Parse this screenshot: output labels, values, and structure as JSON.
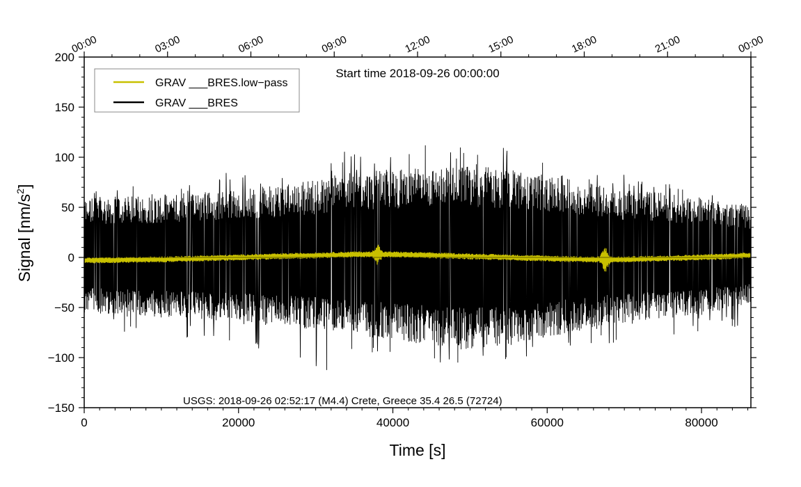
{
  "chart_data": {
    "type": "line",
    "title": "",
    "subtitle": "Start time 2018-09-26 00:00:00",
    "xlabel": "Time [s]",
    "ylabel": "Signal [nm/s",
    "ylabel_sup": "2",
    "ylabel_close": "]",
    "xlim": [
      0,
      86400
    ],
    "ylim": [
      -150,
      200
    ],
    "x_ticks": [
      0,
      20000,
      40000,
      60000,
      80000
    ],
    "x_tick_labels": [
      "0",
      "20000",
      "40000",
      "60000",
      "80000"
    ],
    "y_ticks": [
      200,
      150,
      100,
      50,
      0,
      -50,
      -100,
      -150
    ],
    "y_tick_labels": [
      "200",
      "150",
      "100",
      "50",
      "0",
      "−50",
      "−100",
      "−150"
    ],
    "top_axis_ticks": [
      0,
      10800,
      21600,
      32400,
      43200,
      54000,
      64800,
      75600,
      86400
    ],
    "top_axis_labels": [
      "00:00",
      "03:00",
      "06:00",
      "09:00",
      "12:00",
      "15:00",
      "18:00",
      "21:00",
      "00:00"
    ],
    "annotation": "USGS: 2018-09-26 02:52:17 (M4.4) Crete, Greece 35.4 26.5 (72724)",
    "grid": false,
    "legend_position": "top-left",
    "series": [
      {
        "name": "GRAV ___BRES.low−pass",
        "color": "#c8c000",
        "envelope_x": [
          0,
          10000,
          20000,
          30000,
          35000,
          40000,
          45000,
          50000,
          55000,
          60000,
          65000,
          70000,
          80000,
          86400
        ],
        "center": [
          -3,
          -2,
          0,
          2,
          3,
          3,
          2,
          1,
          0,
          -1,
          -2,
          -2,
          0,
          2
        ],
        "halfwidth": [
          3,
          3,
          3,
          3,
          3,
          3,
          3,
          3,
          3,
          3,
          3,
          3,
          3,
          3
        ],
        "events": [
          {
            "x": 38000,
            "amplitude": 12
          },
          {
            "x": 67500,
            "amplitude": 14
          }
        ]
      },
      {
        "name": "GRAV ___BRES",
        "color": "#000000",
        "envelope_x": [
          0,
          10000,
          20000,
          30000,
          35000,
          40000,
          45000,
          50000,
          55000,
          60000,
          65000,
          70000,
          80000,
          86400
        ],
        "upper": [
          60,
          62,
          68,
          78,
          85,
          88,
          90,
          92,
          88,
          82,
          75,
          68,
          60,
          52
        ],
        "lower": [
          -55,
          -60,
          -65,
          -72,
          -78,
          -82,
          -88,
          -92,
          -88,
          -80,
          -72,
          -65,
          -58,
          -45
        ],
        "spike_max": [
          72,
          75,
          90,
          100,
          112,
          105,
          118,
          122,
          110,
          102,
          95,
          85,
          75,
          60
        ],
        "spike_min": [
          -68,
          -80,
          -85,
          -112,
          -115,
          -100,
          -105,
          -115,
          -105,
          -95,
          -95,
          -85,
          -75,
          -70
        ]
      }
    ]
  }
}
